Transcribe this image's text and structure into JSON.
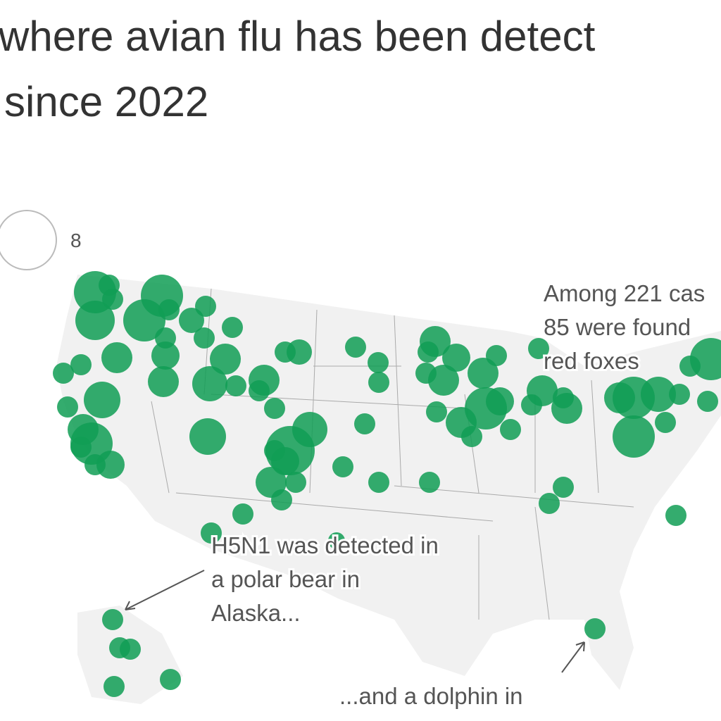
{
  "title": {
    "line1": "where avian flu has been detect",
    "line2": "since 2022"
  },
  "legend": {
    "label": "8"
  },
  "annotations": {
    "foxes": [
      "Among 221 cas",
      "85 were found",
      "red foxes"
    ],
    "polar_bear": [
      "H5N1 was detected in",
      "a polar bear in",
      "Alaska..."
    ],
    "dolphin": [
      "...and a dolphin in"
    ]
  }
}
